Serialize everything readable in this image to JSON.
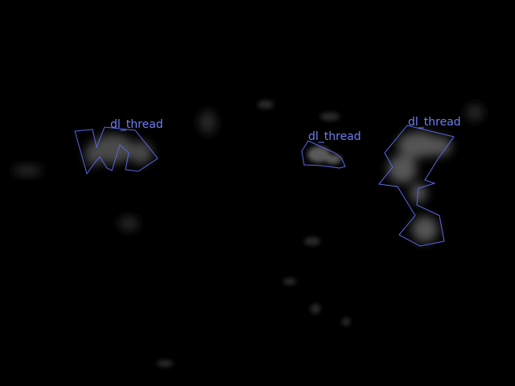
{
  "image": {
    "background_color": "#000000",
    "annotation_color": "#5a66e6",
    "label_color": "#6f7df0"
  },
  "annotations": [
    {
      "label": "dl_thread"
    },
    {
      "label": "dl_thread"
    },
    {
      "label": "dl_thread"
    }
  ]
}
